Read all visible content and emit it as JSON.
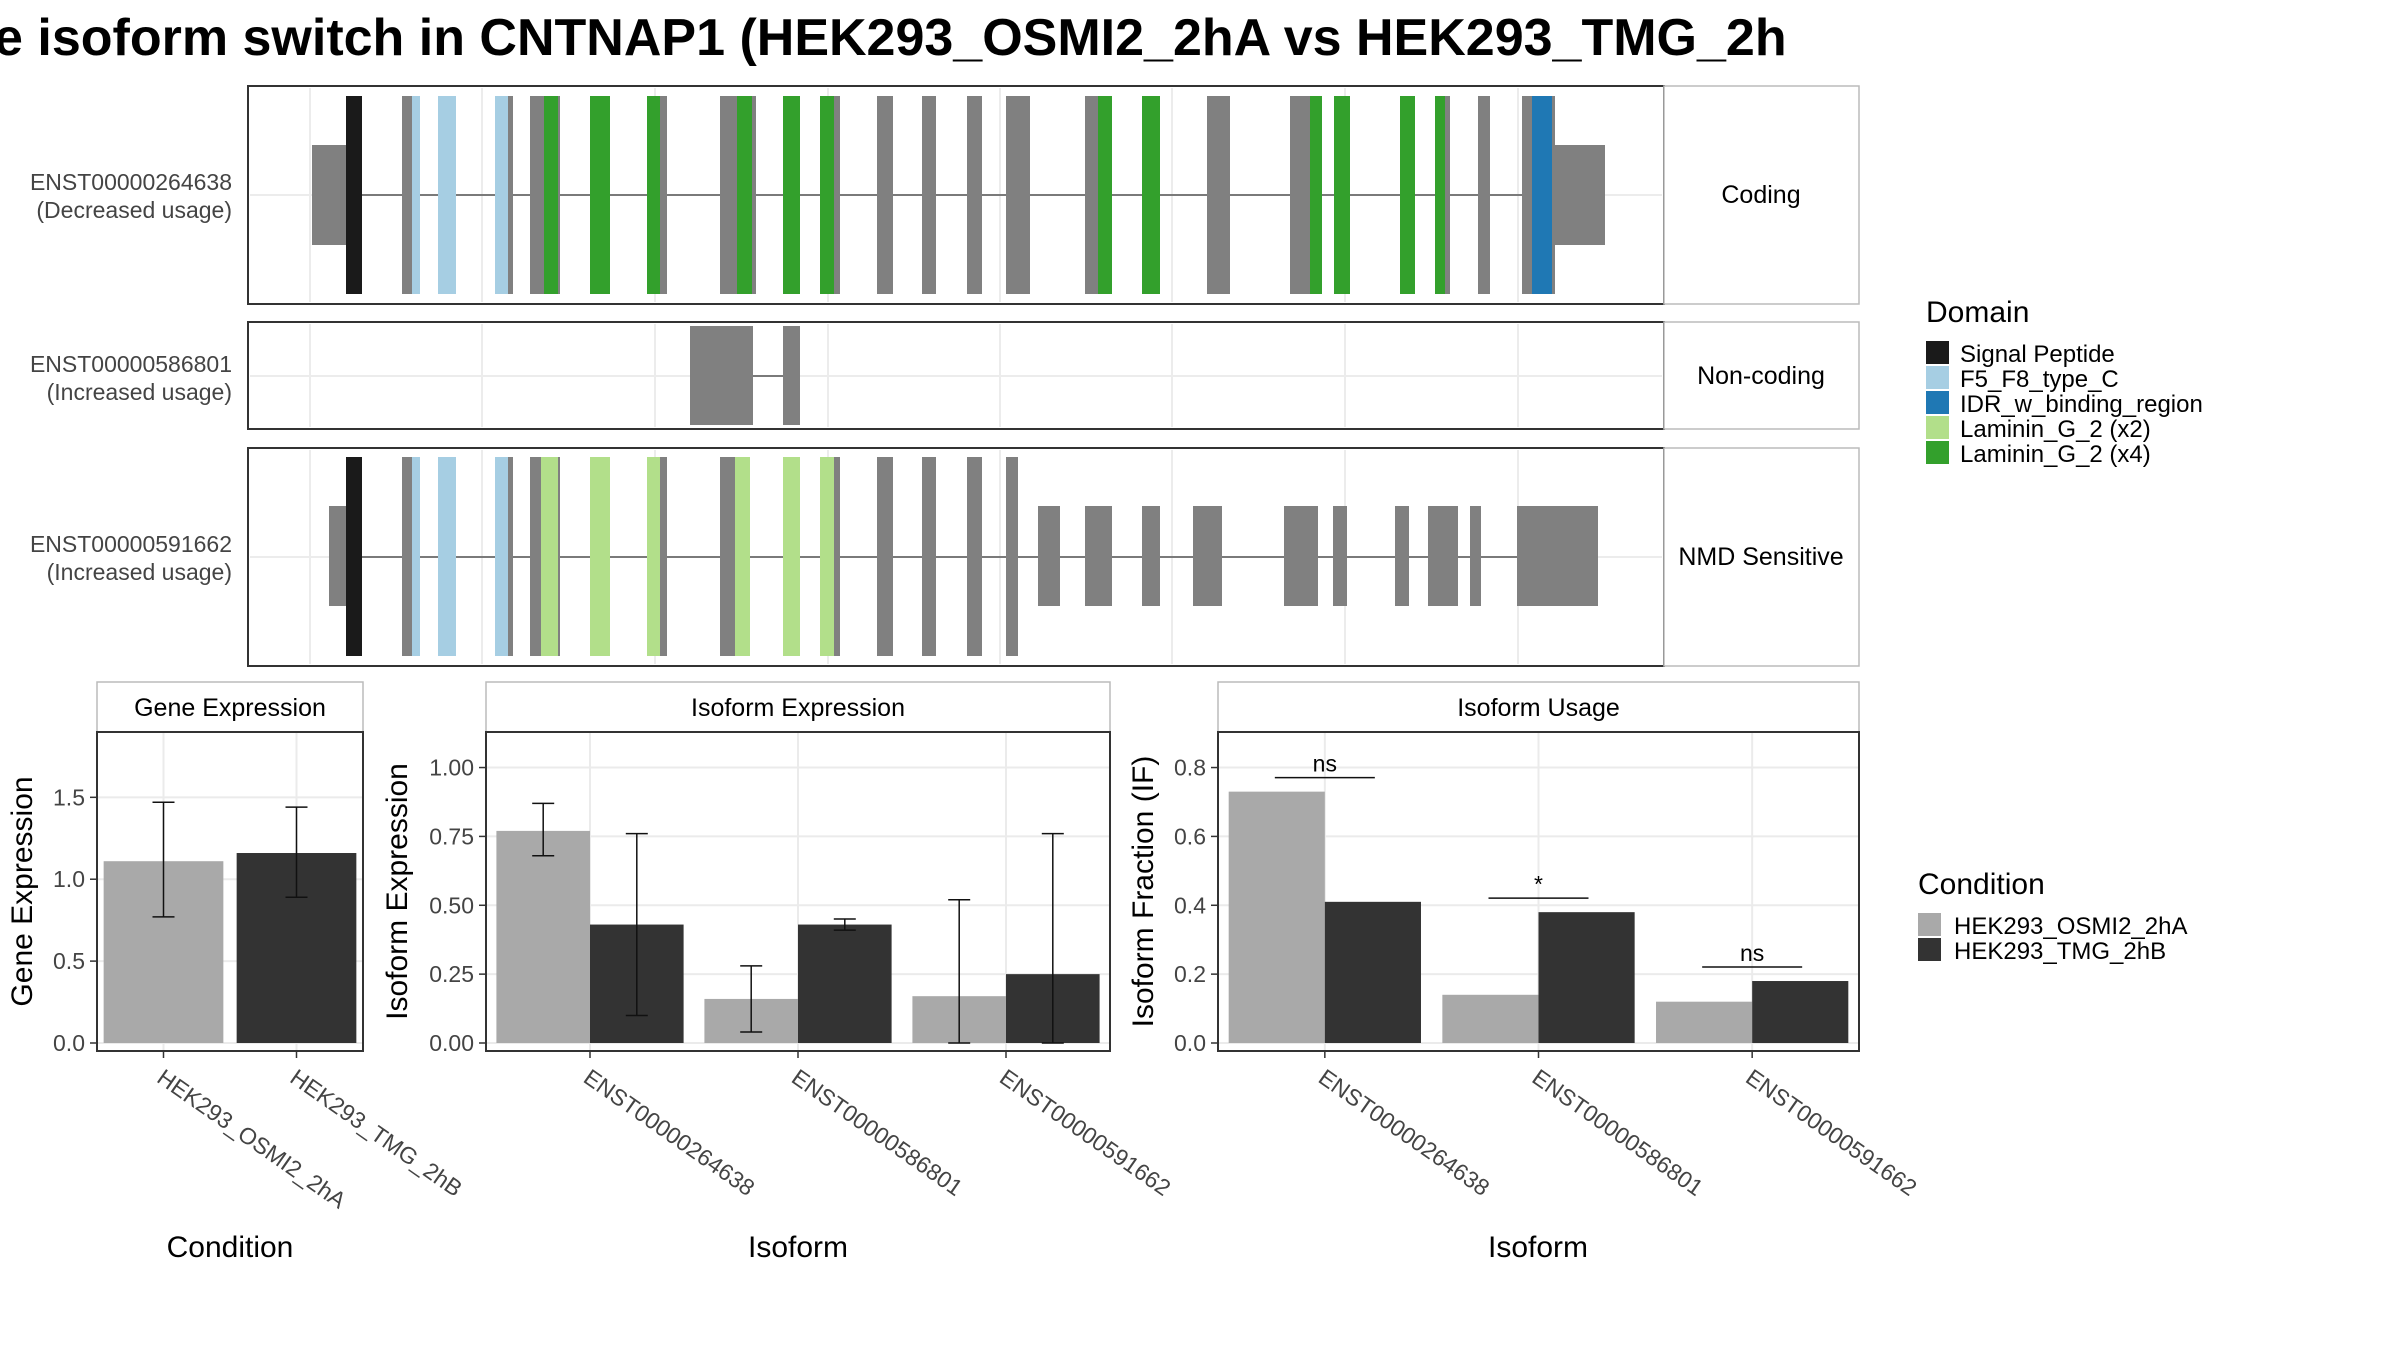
{
  "title": "e isoform switch in CNTNAP1 (HEK293_OSMI2_2hA vs HEK293_TMG_2h",
  "colors": {
    "signal_peptide": "#1a1a1a",
    "f5_f8": "#a6cee3",
    "idr": "#1f78b4",
    "laminin_x2": "#b2df8a",
    "laminin_x4": "#33a02c",
    "exon": "#808080",
    "cond_a": "#a9a9a9",
    "cond_b": "#333333"
  },
  "transcripts": [
    {
      "id": "ENST00000264638",
      "usage": "(Decreased usage)",
      "category": "Coding"
    },
    {
      "id": "ENST00000586801",
      "usage": "(Increased usage)",
      "category": "Non-coding"
    },
    {
      "id": "ENST00000591662",
      "usage": "(Increased usage)",
      "category": "NMD Sensitive"
    }
  ],
  "domain_legend": {
    "title": "Domain",
    "items": [
      {
        "label": "Signal Peptide",
        "color": "#1a1a1a"
      },
      {
        "label": "F5_F8_type_C",
        "color": "#a6cee3"
      },
      {
        "label": "IDR_w_binding_region",
        "color": "#1f78b4"
      },
      {
        "label": "Laminin_G_2 (x2)",
        "color": "#b2df8a"
      },
      {
        "label": "Laminin_G_2 (x4)",
        "color": "#33a02c"
      }
    ]
  },
  "condition_legend": {
    "title": "Condition",
    "items": [
      {
        "label": "HEK293_OSMI2_2hA",
        "color": "#a9a9a9"
      },
      {
        "label": "HEK293_TMG_2hB",
        "color": "#333333"
      }
    ]
  },
  "chart_data": [
    {
      "type": "bar",
      "title": "Gene Expression",
      "xlabel": "Condition",
      "ylabel": "Gene Expression",
      "ylim": [
        0,
        1.85
      ],
      "yticks": [
        "0.0",
        "0.5",
        "1.0",
        "1.5"
      ],
      "categories": [
        "HEK293_OSMI2_2hA",
        "HEK293_TMG_2hB"
      ],
      "values": [
        1.11,
        1.16
      ],
      "error_low": [
        0.77,
        0.89
      ],
      "error_high": [
        1.47,
        1.44
      ]
    },
    {
      "type": "bar",
      "title": "Isoform Expression",
      "xlabel": "Isoform",
      "ylabel": "Isoform Expression",
      "ylim": [
        0,
        1.1
      ],
      "yticks": [
        "0.00",
        "0.25",
        "0.50",
        "0.75",
        "1.00"
      ],
      "categories": [
        "ENST00000264638",
        "ENST00000586801",
        "ENST00000591662"
      ],
      "series": [
        {
          "name": "HEK293_OSMI2_2hA",
          "values": [
            0.77,
            0.16,
            0.17
          ],
          "error_low": [
            0.68,
            0.04,
            0.0
          ],
          "error_high": [
            0.87,
            0.28,
            0.52
          ]
        },
        {
          "name": "HEK293_TMG_2hB",
          "values": [
            0.43,
            0.43,
            0.25
          ],
          "error_low": [
            0.1,
            0.41,
            0.0
          ],
          "error_high": [
            0.76,
            0.45,
            0.76
          ]
        }
      ]
    },
    {
      "type": "bar",
      "title": "Isoform Usage",
      "xlabel": "Isoform",
      "ylabel": "Isoform Fraction (IF)",
      "ylim": [
        0,
        0.88
      ],
      "yticks": [
        "0.0",
        "0.2",
        "0.4",
        "0.6",
        "0.8"
      ],
      "categories": [
        "ENST00000264638",
        "ENST00000586801",
        "ENST00000591662"
      ],
      "series": [
        {
          "name": "HEK293_OSMI2_2hA",
          "values": [
            0.73,
            0.14,
            0.12
          ]
        },
        {
          "name": "HEK293_TMG_2hB",
          "values": [
            0.41,
            0.38,
            0.18
          ]
        }
      ],
      "significance": [
        "ns",
        "*",
        "ns"
      ]
    }
  ]
}
